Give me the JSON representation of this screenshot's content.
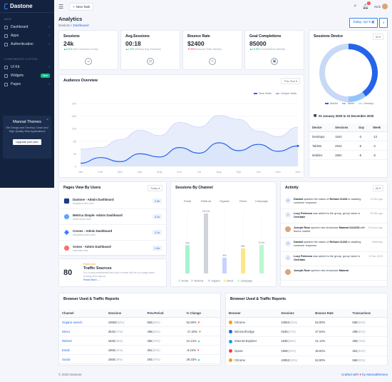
{
  "brand": {
    "name": "Dastone"
  },
  "sidebar": {
    "section_main": "MAIN",
    "items": [
      {
        "label": "Dashboard"
      },
      {
        "label": "Apps"
      },
      {
        "label": "Authentication"
      }
    ],
    "section_components": "COMPONENTS & EXTRA",
    "items2": [
      {
        "label": "UI Kit"
      },
      {
        "label": "Widgets",
        "badge": "New"
      },
      {
        "label": "Pages"
      }
    ],
    "promo": {
      "title": "Mannat Themes",
      "text": "We Design and Develop Clean and High Quality Web Applications",
      "button": "Upgrade your plan"
    }
  },
  "topbar": {
    "new_task": "New Task",
    "notif_count": "2",
    "user": "Nick"
  },
  "header": {
    "title": "Analytics",
    "crumb_root": "Dastone",
    "crumb_current": "Dashboard",
    "date_btn": "Today: Apr 5"
  },
  "stats": [
    {
      "label": "Sessions",
      "value": "24k",
      "delta": "8.5%",
      "delta_text": "New Sessions Today",
      "dir": "up"
    },
    {
      "label": "Avg.Sessions",
      "value": "00:18",
      "delta": "1.5%",
      "delta_text": "Weekly Avg.Sessions",
      "dir": "up"
    },
    {
      "label": "Bounce Rate",
      "value": "$2400",
      "delta": "35%",
      "delta_text": "Bounce Rate Weekly",
      "dir": "down"
    },
    {
      "label": "Goal Completions",
      "value": "85000",
      "delta": "10.5%",
      "delta_text": "Completions Weekly",
      "dir": "up"
    }
  ],
  "sessions_device": {
    "title": "Sessions Device",
    "filter": "All",
    "legend": [
      "Mobile",
      "Tablet",
      "Desktop"
    ],
    "date_range": "01 January 2020 to 31 December 2020",
    "columns": [
      "Device",
      "Sessions",
      "Day",
      "Week"
    ],
    "rows": [
      [
        "Desktops",
        "1843",
        "-3",
        "-12"
      ],
      [
        "Tablets",
        "2543",
        "-5",
        "-2"
      ],
      [
        "Mobiles",
        "3654",
        "-5",
        "-6"
      ]
    ]
  },
  "audience": {
    "title": "Audience Overview",
    "filter": "This Year"
  },
  "chart_data": [
    {
      "type": "area",
      "title": "Audience Overview",
      "categories": [
        "Jan",
        "Feb",
        "Mar",
        "Apr",
        "May",
        "Jun",
        "Jul",
        "Aug",
        "Sep",
        "Oct",
        "Nov",
        "Dec"
      ],
      "series": [
        {
          "name": "New Visits",
          "values": [
            10,
            28,
            15,
            40,
            30,
            60,
            42,
            75,
            50,
            70,
            48,
            65
          ]
        },
        {
          "name": "Unique Visits",
          "values": [
            55,
            60,
            85,
            115,
            98,
            140,
            125,
            162,
            150,
            112,
            95,
            125
          ]
        }
      ],
      "yticks": [
        0,
        40,
        80,
        120,
        160,
        200
      ],
      "ylim": [
        0,
        200
      ]
    },
    {
      "type": "bar",
      "title": "Sessions By Channel",
      "categories": [
        "Email",
        "Referral",
        "Organic",
        "Direct",
        "Campaign"
      ],
      "values": [
        9,
        19.1,
        5,
        8,
        9.1
      ],
      "data_labels": [
        "9%",
        "19.1%",
        "5%",
        "8%",
        "9.1%"
      ],
      "ylim": [
        0,
        20
      ]
    },
    {
      "type": "pie",
      "title": "Sessions Device",
      "categories": [
        "Mobile",
        "Tablet",
        "Desktop"
      ],
      "values": [
        40,
        10,
        50
      ]
    }
  ],
  "pages": {
    "title": "Pages View By Users",
    "filter": "Today",
    "items": [
      {
        "title": "Dastone - Admin Dashboard",
        "url": "analytic-index.html",
        "count": "4.3k"
      },
      {
        "title": "Metrica Simple- Admin Dashboard",
        "url": "sales-index.html",
        "count": "3.1k"
      },
      {
        "title": "Crovex - Admin Dashboard",
        "url": "helpdesk-index.html",
        "count": "3.1k"
      },
      {
        "title": "Annex - Admin Dashboard",
        "url": "calendar.html",
        "count": "1.6k"
      }
    ]
  },
  "traffic": {
    "value": "80",
    "label": "Right now",
    "title": "Traffic Sources",
    "text": "It is a long established fact that a reader will be of a page when looking at its layout.",
    "link": "Read More"
  },
  "channel": {
    "title": "Sessions By Channel"
  },
  "activity": {
    "title": "Activity",
    "filter": "All",
    "items": [
      {
        "who": "Donald",
        "text": "updated the status of",
        "target": "Refund #1234",
        "text2": "to awaiting customer response",
        "time": "10 Min ago"
      },
      {
        "who": "Lucy Peterson",
        "text": "was added to the group, group name is",
        "target": "Overtake",
        "text2": "",
        "time": "50 Min ago"
      },
      {
        "who": "Joseph Rust",
        "text": "opened new showcase",
        "target": "Mannat #112233",
        "text2": "with theme market",
        "time": "10 hours ago"
      },
      {
        "who": "Donald",
        "text": "updated the status of",
        "target": "Refund #1234",
        "text2": "to awaiting customer response",
        "time": "Yesterday"
      },
      {
        "who": "Lucy Peterson",
        "text": "was added to the group, group name is",
        "target": "Overtake",
        "text2": "",
        "time": "14 Nov 2019"
      },
      {
        "who": "Joseph Rust",
        "text": "opened new showcase",
        "target": "Mannat",
        "text2": "",
        "time": ""
      }
    ]
  },
  "browser_left": {
    "title": "Browser Used & Traffic Reports",
    "columns": [
      "Channel",
      "Sessions",
      "Prev.Period",
      "% Change"
    ],
    "rows": [
      {
        "name": "Organic search",
        "s": "10853",
        "sp": "(52%)",
        "p": "566",
        "pp": "(92%)",
        "c": "52.80%",
        "dir": "down"
      },
      {
        "name": "Direct",
        "s": "2545",
        "sp": "(47%)",
        "p": "498",
        "pp": "(81%)",
        "c": "-17.20%",
        "dir": "down"
      },
      {
        "name": "Referal",
        "s": "1836",
        "sp": "(38%)",
        "p": "455",
        "pp": "(74%)",
        "c": "41.12%",
        "dir": "up"
      },
      {
        "name": "Email",
        "s": "1958",
        "sp": "(31%)",
        "p": "361",
        "pp": "(61%)",
        "c": "-8.24%",
        "dir": "down"
      },
      {
        "name": "Social",
        "s": "1566",
        "sp": "(26%)",
        "p": "293",
        "pp": "(47%)",
        "c": "29.33%",
        "dir": "up"
      }
    ]
  },
  "browser_right": {
    "title": "Browser Used & Traffic Reports",
    "columns": [
      "Browser",
      "Sessions",
      "Bounce Rate",
      "Transactions"
    ],
    "rows": [
      {
        "name": "Chrome",
        "s": "10853",
        "sp": "(32%)",
        "b": "52.80%",
        "t": "566",
        "tp": "(92%)",
        "color": "#f59e0b"
      },
      {
        "name": "Microsoft Edge",
        "s": "2545",
        "sp": "(47%)",
        "b": "47.54%",
        "t": "498",
        "tp": "(81%)",
        "color": "#2563eb"
      },
      {
        "name": "Internet-Explorer",
        "s": "1836",
        "sp": "(38%)",
        "b": "41.12%",
        "t": "455",
        "tp": "(74%)",
        "color": "#0ea5e9"
      },
      {
        "name": "Opera",
        "s": "1958",
        "sp": "(31%)",
        "b": "36.82%",
        "t": "361",
        "tp": "(61%)",
        "color": "#ef4444"
      },
      {
        "name": "Chrome",
        "s": "10853",
        "sp": "(32%)",
        "b": "52.80%",
        "t": "566",
        "tp": "(92%)",
        "color": "#f59e0b"
      }
    ]
  },
  "footer": {
    "copy": "© 2020 Dastone",
    "crafted": "Crafted with",
    "heart": "♥",
    "by": "by Mannatthemes"
  }
}
